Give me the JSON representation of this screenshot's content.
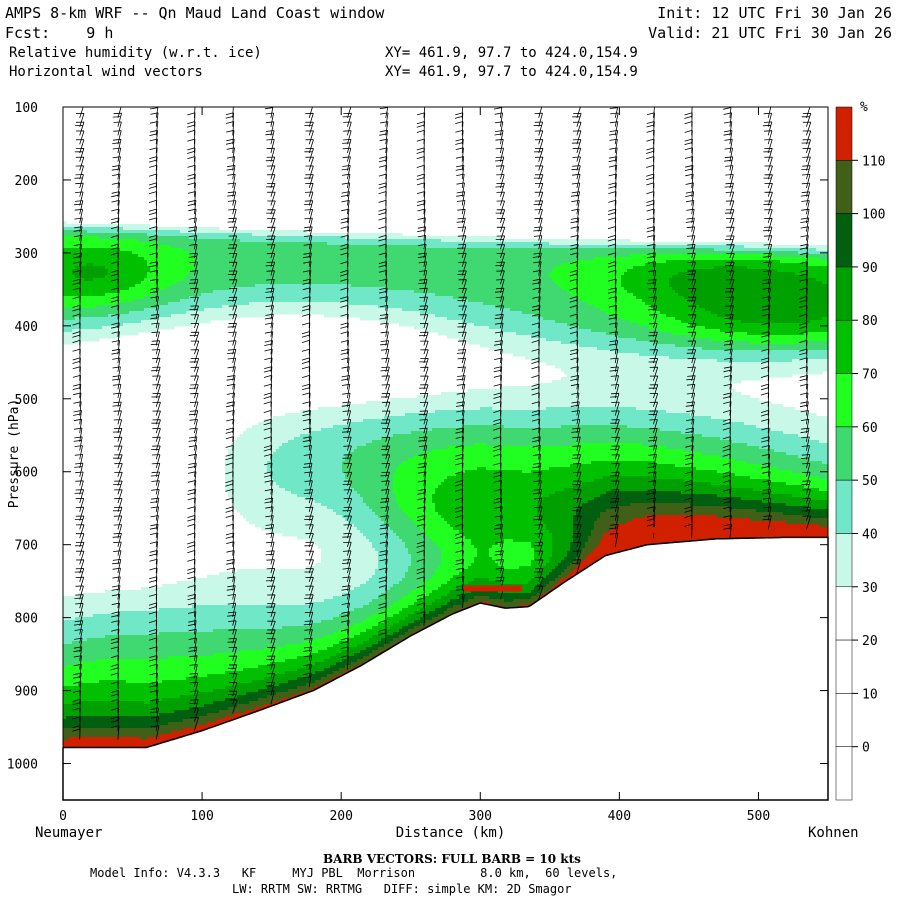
{
  "header": {
    "title": "AMPS 8-km WRF -- Qn Maud Land Coast window",
    "fcst": "Fcst:    9 h",
    "init": "Init: 12 UTC Fri 30 Jan 26",
    "valid": "Valid: 21 UTC Fri 30 Jan 26",
    "field1": "Relative humidity (w.r.t. ice)",
    "field2": "Horizontal wind vectors",
    "xy1": "XY= 461.9, 97.7 to 424.0,154.9",
    "xy2": "XY= 461.9, 97.7 to 424.0,154.9"
  },
  "chart_data": {
    "type": "cross-section contour",
    "ylabel": "Pressure (hPa)",
    "xlabel": "Distance (km)",
    "x_left_label": "Neumayer",
    "x_right_label": "Kohnen",
    "xlim": [
      0,
      550
    ],
    "ylim": [
      1050,
      100
    ],
    "xticks": [
      0,
      100,
      200,
      300,
      400,
      500
    ],
    "yticks": [
      100,
      200,
      300,
      400,
      500,
      600,
      700,
      800,
      900,
      1000
    ],
    "colorbar": {
      "unit": "%",
      "levels": [
        0,
        10,
        20,
        30,
        40,
        50,
        60,
        70,
        80,
        90,
        100,
        110
      ],
      "colors": [
        "#ffffff",
        "#ffffff",
        "#ffffff",
        "#c8f8e8",
        "#70e8c8",
        "#40d870",
        "#20ff20",
        "#00c000",
        "#00a000",
        "#006010",
        "#406018",
        "#d02000"
      ]
    },
    "terrain": [
      [
        0,
        978
      ],
      [
        60,
        978
      ],
      [
        100,
        955
      ],
      [
        140,
        928
      ],
      [
        180,
        900
      ],
      [
        215,
        865
      ],
      [
        250,
        825
      ],
      [
        280,
        795
      ],
      [
        300,
        780
      ],
      [
        318,
        787
      ],
      [
        335,
        785
      ],
      [
        360,
        752
      ],
      [
        390,
        715
      ],
      [
        420,
        700
      ],
      [
        470,
        692
      ],
      [
        520,
        690
      ],
      [
        550,
        690
      ]
    ]
  },
  "footer": {
    "barb_note": "BARB VECTORS:  FULL BARB = 10 kts",
    "model_info": "Model Info: V4.3.3   KF     MYJ PBL  Morrison         8.0 km,  60 levels,",
    "physics": "LW: RRTM SW: RRTMG   DIFF: simple KM: 2D Smagor"
  }
}
